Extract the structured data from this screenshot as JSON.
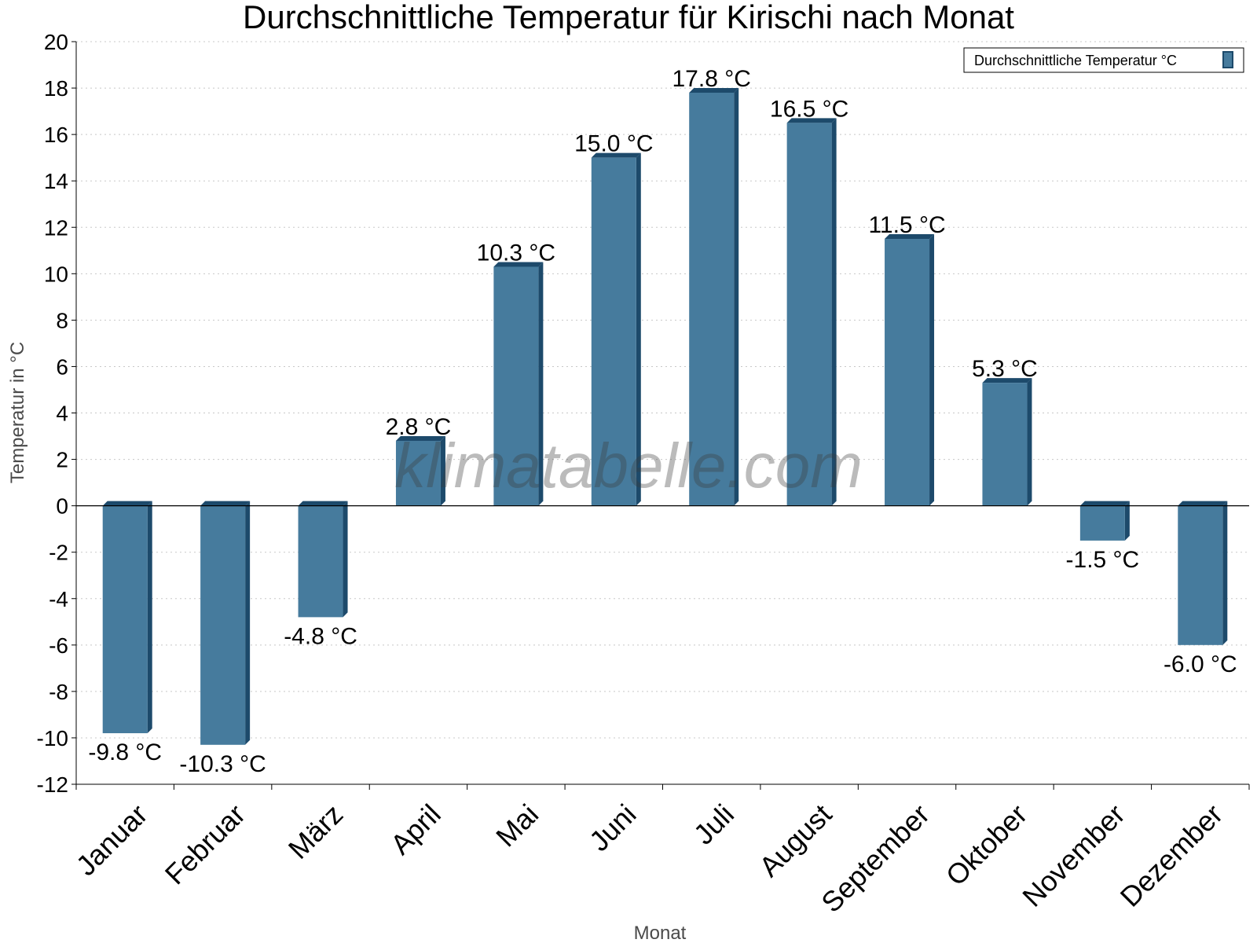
{
  "chart_data": {
    "type": "bar",
    "title": "Durchschnittliche Temperatur für Kirischi nach Monat",
    "xlabel": "Monat",
    "ylabel": "Temperatur in °C",
    "ylim": [
      -12,
      20
    ],
    "yticks": [
      "20",
      "18",
      "16",
      "14",
      "12",
      "10",
      "8",
      "6",
      "4",
      "2",
      "0",
      "-2",
      "-4",
      "-6",
      "-8",
      "-10",
      "-12"
    ],
    "ytick_values": [
      20,
      18,
      16,
      14,
      12,
      10,
      8,
      6,
      4,
      2,
      0,
      -2,
      -4,
      -6,
      -8,
      -10,
      -12
    ],
    "grid": true,
    "legend_position": "top-right",
    "categories": [
      "Januar",
      "Februar",
      "März",
      "April",
      "Mai",
      "Juni",
      "Juli",
      "August",
      "September",
      "Oktober",
      "November",
      "Dezember"
    ],
    "series": [
      {
        "name": "Durchschnittliche Temperatur °C",
        "values": [
          -9.8,
          -10.3,
          -4.8,
          2.8,
          10.3,
          15.0,
          17.8,
          16.5,
          11.5,
          5.3,
          -1.5,
          -6.0
        ],
        "labels": [
          "-9.8 °C",
          "-10.3 °C",
          "-4.8 °C",
          "2.8 °C",
          "10.3 °C",
          "15.0 °C",
          "17.8 °C",
          "16.5 °C",
          "11.5 °C",
          "5.3 °C",
          "-1.5 °C",
          "-6.0 °C"
        ],
        "color": "#467b9d",
        "edge_color": "#1d4a6b"
      }
    ],
    "watermark": "klimatabelle.com"
  }
}
